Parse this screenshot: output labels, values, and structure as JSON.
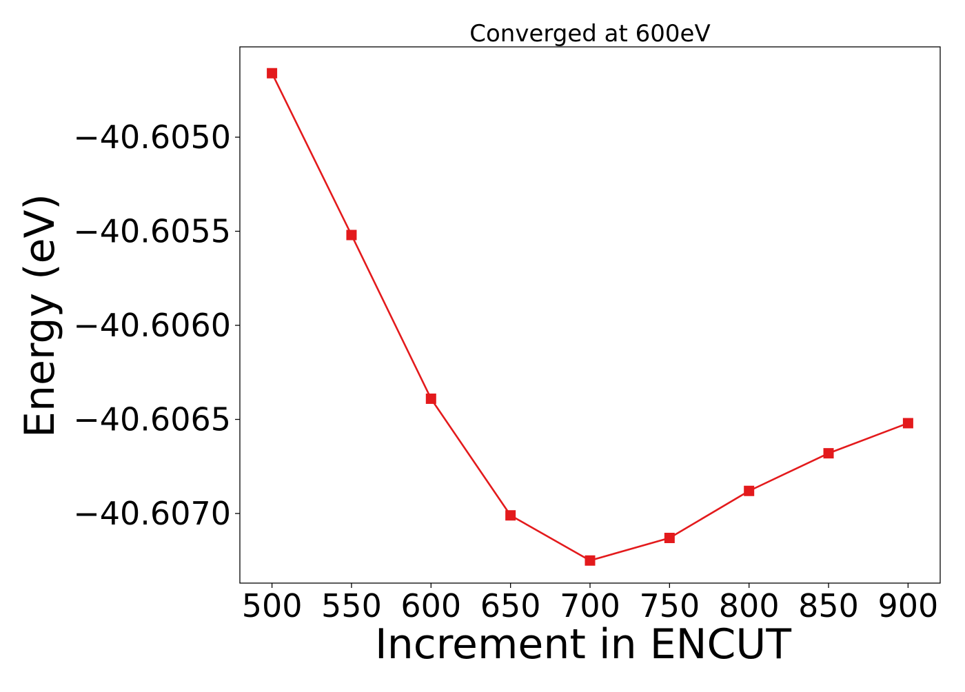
{
  "chart_data": {
    "type": "line",
    "title": "Converged at 600eV",
    "xlabel": "Increment in ENCUT",
    "ylabel": "Energy (eV)",
    "x": [
      500,
      550,
      600,
      650,
      700,
      750,
      800,
      850,
      900
    ],
    "series": [
      {
        "values": [
          -40.60466,
          -40.60552,
          -40.60639,
          -40.60701,
          -40.60725,
          -40.60713,
          -40.60688,
          -40.60668,
          -40.60652
        ],
        "color": "#e31a1c",
        "marker": "square"
      }
    ],
    "xticks": [
      500,
      550,
      600,
      650,
      700,
      750,
      800,
      850,
      900
    ],
    "xtick_labels": [
      "500",
      "550",
      "600",
      "650",
      "700",
      "750",
      "800",
      "850",
      "900"
    ],
    "yticks": [
      -40.605,
      -40.6055,
      -40.606,
      -40.6065,
      -40.607
    ],
    "ytick_labels": [
      "−40.6050",
      "−40.6055",
      "−40.6060",
      "−40.6065",
      "−40.6070"
    ],
    "xlim": [
      479.8,
      920.2
    ],
    "ylim": [
      -40.60737,
      -40.60452
    ],
    "grid": false,
    "legend": "none"
  }
}
